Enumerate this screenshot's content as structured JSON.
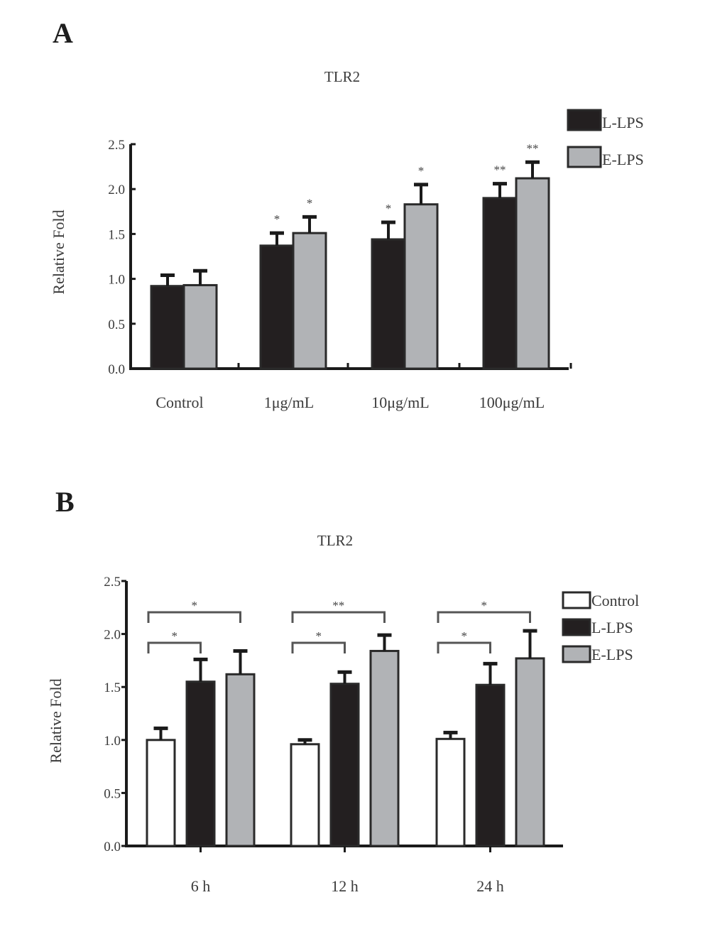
{
  "chart_data": [
    {
      "panel": "A",
      "type": "bar",
      "title": "TLR2",
      "xlabel": "",
      "ylabel": "Relative Fold",
      "ylim": [
        0,
        2.5
      ],
      "yticks": [
        "0.0",
        "0.5",
        "1.0",
        "1.5",
        "2.0",
        "2.5"
      ],
      "categories": [
        "Control",
        "1μg/mL",
        "10μg/mL",
        "100μg/mL"
      ],
      "legend_position": "top-right",
      "series": [
        {
          "name": "L-LPS",
          "color": "#231f20",
          "values": [
            0.92,
            1.37,
            1.44,
            1.9
          ],
          "errors": [
            0.12,
            0.14,
            0.19,
            0.16
          ],
          "significance": [
            "",
            "*",
            "*",
            "**"
          ]
        },
        {
          "name": "E-LPS",
          "color": "#b1b3b6",
          "values": [
            0.93,
            1.51,
            1.83,
            2.12
          ],
          "errors": [
            0.16,
            0.18,
            0.22,
            0.18
          ],
          "significance": [
            "",
            "*",
            "*",
            "**"
          ]
        }
      ]
    },
    {
      "panel": "B",
      "type": "bar",
      "title": "TLR2",
      "xlabel": "",
      "ylabel": "Relative Fold",
      "ylim": [
        0,
        2.5
      ],
      "yticks": [
        "0.0",
        "0.5",
        "1.0",
        "1.5",
        "2.0",
        "2.5"
      ],
      "categories": [
        "6 h",
        "12 h",
        "24 h"
      ],
      "legend_position": "right",
      "series": [
        {
          "name": "Control",
          "color": "#ffffff",
          "values": [
            1.0,
            0.96,
            1.01
          ],
          "errors": [
            0.11,
            0.04,
            0.06
          ]
        },
        {
          "name": "L-LPS",
          "color": "#231f20",
          "values": [
            1.55,
            1.53,
            1.52
          ],
          "errors": [
            0.21,
            0.11,
            0.2
          ]
        },
        {
          "name": "E-LPS",
          "color": "#b1b3b6",
          "values": [
            1.62,
            1.84,
            1.77
          ],
          "errors": [
            0.22,
            0.15,
            0.26
          ]
        }
      ],
      "comparison_brackets": [
        {
          "category": "6 h",
          "from": "Control",
          "to": "L-LPS",
          "label": "*"
        },
        {
          "category": "6 h",
          "from": "Control",
          "to": "E-LPS",
          "label": "*"
        },
        {
          "category": "12 h",
          "from": "Control",
          "to": "L-LPS",
          "label": "*"
        },
        {
          "category": "12 h",
          "from": "Control",
          "to": "E-LPS",
          "label": "**"
        },
        {
          "category": "24 h",
          "from": "Control",
          "to": "L-LPS",
          "label": "*"
        },
        {
          "category": "24 h",
          "from": "Control",
          "to": "E-LPS",
          "label": "*"
        }
      ]
    }
  ]
}
